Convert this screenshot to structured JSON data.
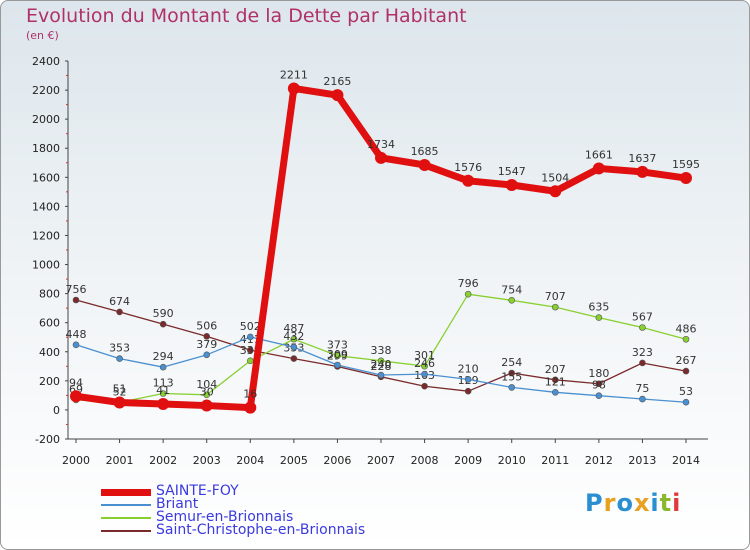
{
  "title": "Evolution du Montant de la Dette par Habitant",
  "subtitle": "(en €)",
  "logo": [
    "P",
    "r",
    "o",
    "x",
    "i",
    "t",
    "i"
  ],
  "logo_colors": [
    "#2a8fd0",
    "#e8a020",
    "#2a8fd0",
    "#e8a020",
    "#2a8fd0",
    "#8ab92d",
    "#e03a3a"
  ],
  "chart_data": {
    "type": "line",
    "x": [
      "2000",
      "2001",
      "2002",
      "2003",
      "2004",
      "2005",
      "2006",
      "2007",
      "2008",
      "2009",
      "2010",
      "2011",
      "2012",
      "2013",
      "2014"
    ],
    "ylim": [
      -200,
      2400
    ],
    "yticks": [
      "-200",
      "0",
      "200",
      "400",
      "600",
      "800",
      "1000",
      "1200",
      "1400",
      "1600",
      "1800",
      "2000",
      "2200",
      "2400"
    ],
    "grid": false,
    "legend_placement": "bottom-left",
    "series": [
      {
        "name": "Saint-Christophe-en-Brionnais",
        "color": "#7a2a2a",
        "values": [
          756,
          674,
          590,
          506,
          411,
          353,
          299,
          228,
          163,
          129,
          254,
          207,
          180,
          323,
          267
        ],
        "labels": [
          "756",
          "674",
          "590",
          "506",
          "411",
          "353",
          "299",
          "228",
          "163",
          "129",
          "254",
          "207",
          "180",
          "323",
          "267"
        ]
      },
      {
        "name": "Semur-en-Brionnais",
        "color": "#88d030",
        "values": [
          69,
          52,
          113,
          104,
          338,
          487,
          373,
          338,
          301,
          796,
          754,
          707,
          635,
          567,
          486
        ],
        "labels": [
          "69",
          "52",
          "113",
          "104",
          "338",
          "487",
          "373",
          "338",
          "301",
          "796",
          "754",
          "707",
          "635",
          "567",
          "486"
        ]
      },
      {
        "name": "Briant",
        "color": "#4a90d0",
        "values": [
          448,
          353,
          294,
          379,
          502,
          432,
          309,
          240,
          246,
          210,
          155,
          121,
          98,
          75,
          53
        ],
        "labels": [
          "448",
          "353",
          "294",
          "379",
          "502",
          "432",
          "309",
          "240",
          "246",
          "210",
          "155",
          "121",
          "98",
          "75",
          "53"
        ]
      },
      {
        "name": "SAINTE-FOY",
        "color": "#e01010",
        "values": [
          94,
          51,
          41,
          30,
          16,
          2211,
          2165,
          1734,
          1685,
          1576,
          1547,
          1504,
          1661,
          1637,
          1595
        ],
        "labels": [
          "94",
          "51",
          "41",
          "30",
          "16",
          "2211",
          "2165",
          "1734",
          "1685",
          "1576",
          "1547",
          "1504",
          "1661",
          "1637",
          "1595"
        ]
      }
    ]
  },
  "legend": [
    {
      "name": "SAINTE-FOY",
      "color": "#e01010",
      "text_color": "#3a3ae0"
    },
    {
      "name": "Briant",
      "color": "#4a90d0",
      "text_color": "#3a3ae0"
    },
    {
      "name": "Semur-en-Brionnais",
      "color": "#88d030",
      "text_color": "#3a3ae0"
    },
    {
      "name": "Saint-Christophe-en-Brionnais",
      "color": "#7a2a2a",
      "text_color": "#3a3ae0"
    }
  ]
}
